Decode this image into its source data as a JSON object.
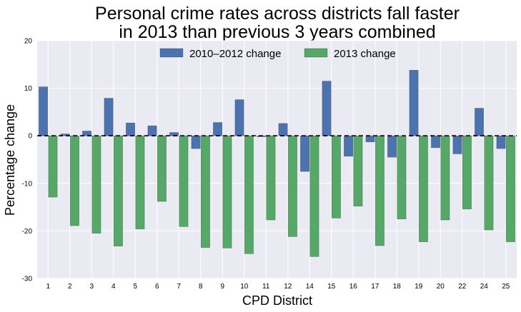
{
  "chart_data": {
    "type": "bar",
    "title": [
      "Personal crime rates across districts fall faster",
      "in 2013 than previous 3 years combined"
    ],
    "xlabel": "CPD District",
    "ylabel": "Percentage change",
    "ylim": [
      -30,
      20
    ],
    "yticks": [
      -30,
      -20,
      -10,
      0,
      10,
      20
    ],
    "grid": true,
    "legend_placement": "top-center",
    "categories": [
      "1",
      "2",
      "3",
      "4",
      "5",
      "6",
      "7",
      "8",
      "9",
      "10",
      "11",
      "12",
      "14",
      "15",
      "16",
      "17",
      "18",
      "19",
      "20",
      "22",
      "24",
      "25"
    ],
    "series": [
      {
        "name": "2010–2012 change",
        "color": "#4c72b0",
        "values": [
          10.3,
          0.4,
          1.0,
          7.9,
          2.7,
          2.1,
          0.7,
          -2.7,
          2.8,
          7.6,
          -0.2,
          2.6,
          -7.5,
          11.5,
          -4.3,
          -1.3,
          -4.5,
          13.8,
          -2.5,
          -3.8,
          5.8,
          -2.7
        ]
      },
      {
        "name": "2013 change",
        "color": "#55a868",
        "values": [
          -12.9,
          -18.9,
          -20.5,
          -23.2,
          -19.6,
          -13.8,
          -19.1,
          -23.5,
          -23.6,
          -24.8,
          -17.7,
          -21.2,
          -25.4,
          -17.3,
          -14.8,
          -23.1,
          -17.5,
          -22.3,
          -17.7,
          -15.4,
          -19.8,
          -22.3
        ]
      }
    ],
    "zero_line_style": "dashed"
  }
}
